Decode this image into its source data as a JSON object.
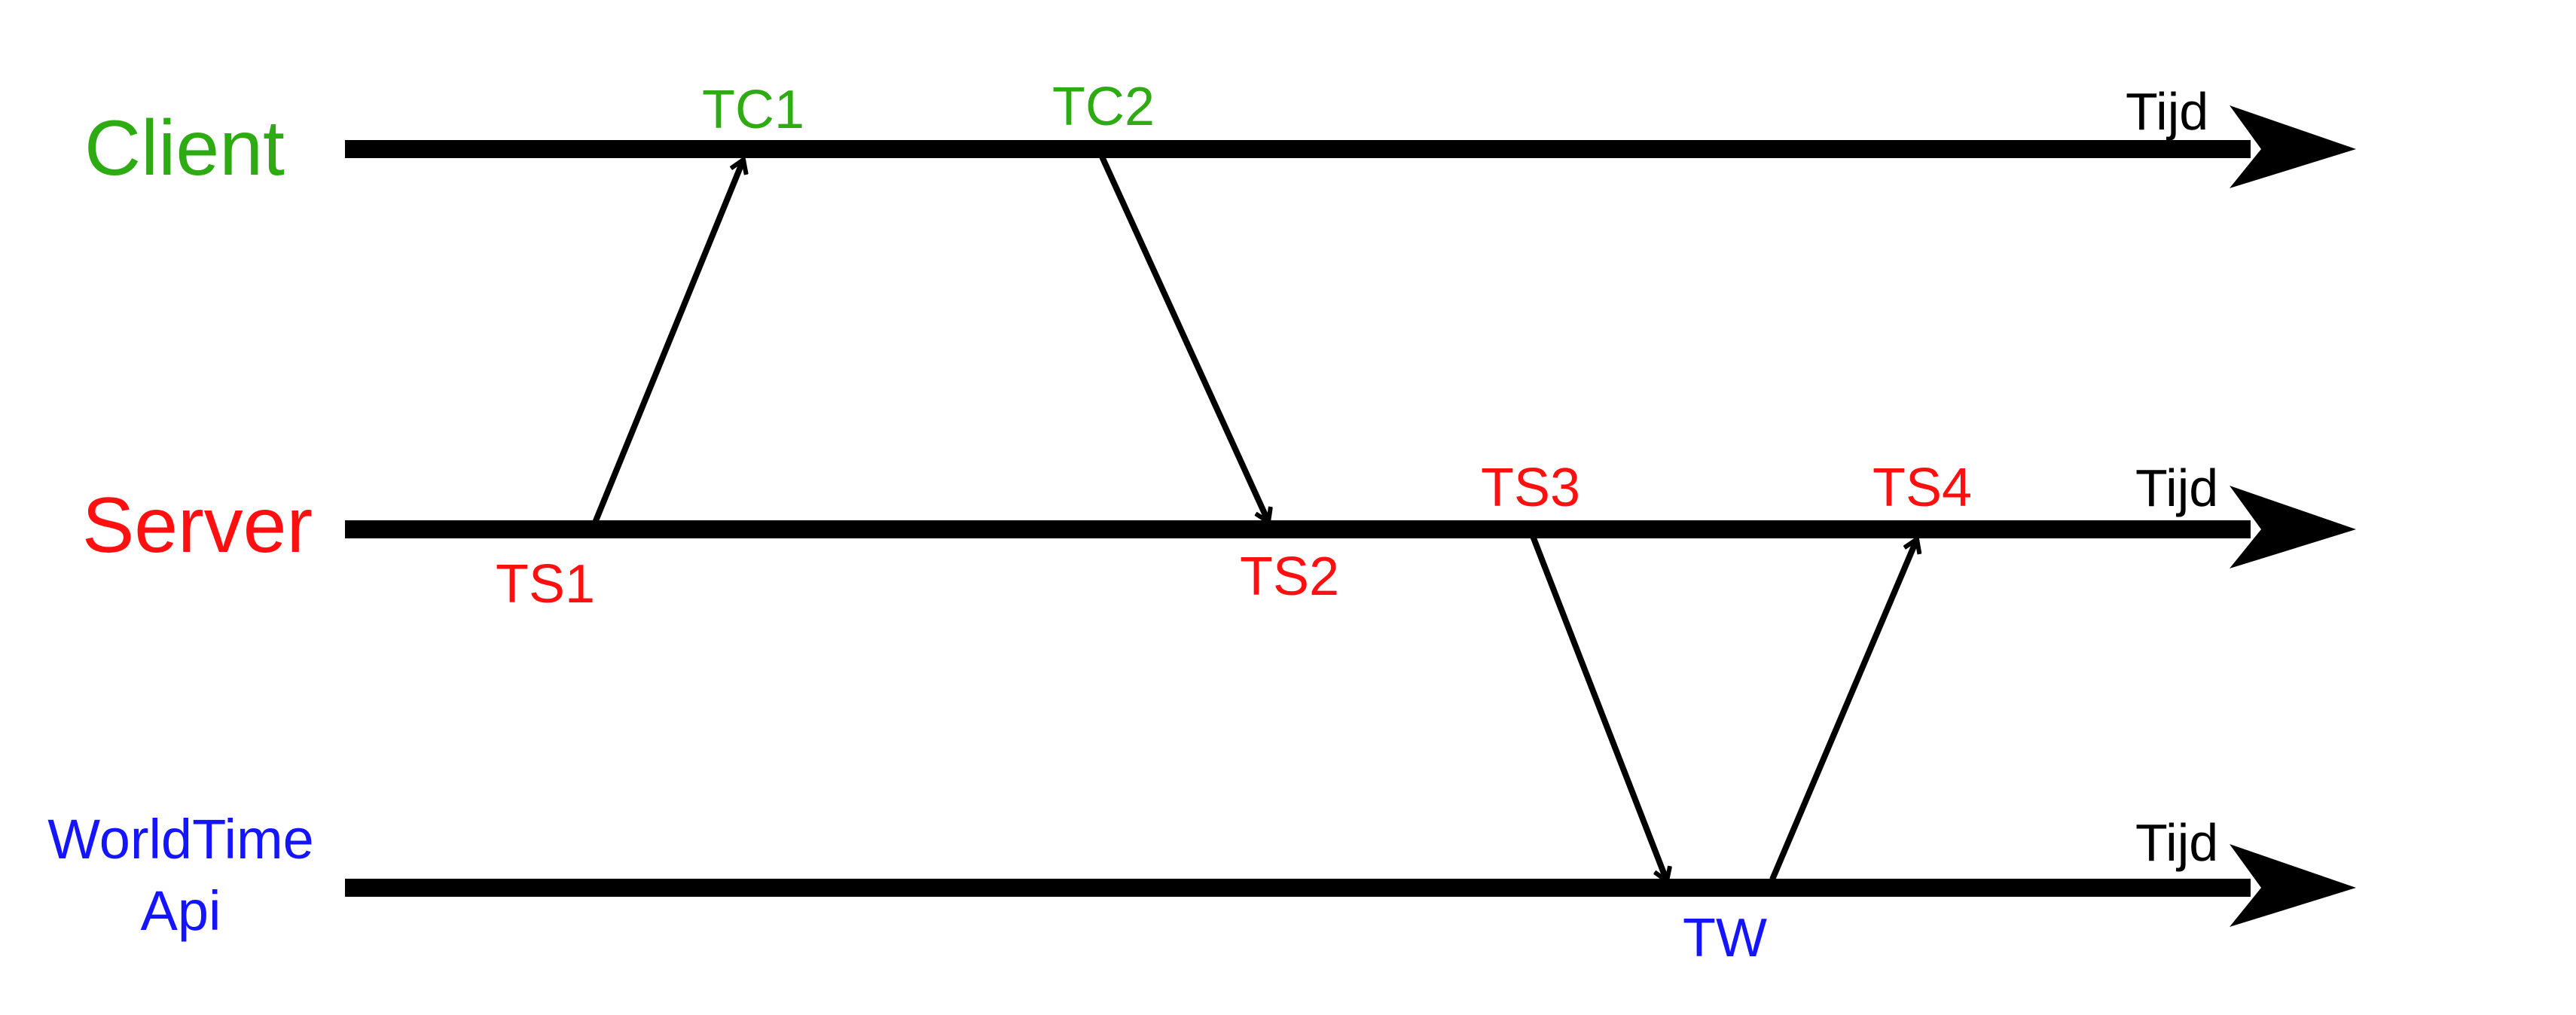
{
  "colors": {
    "client": "#2eaa12",
    "server": "#ff0f0f",
    "api": "#1414ff",
    "axis": "#000000"
  },
  "lanes": {
    "client": {
      "label_lines": [
        "Client"
      ],
      "time_label": "Tijd"
    },
    "server": {
      "label_lines": [
        "Server"
      ],
      "time_label": "Tijd"
    },
    "api": {
      "label_lines": [
        "WorldTime",
        "Api"
      ],
      "time_label": "Tijd"
    }
  },
  "events": {
    "ts1": "TS1",
    "tc1": "TC1",
    "tc2": "TC2",
    "ts2": "TS2",
    "ts3": "TS3",
    "tw": "TW",
    "ts4": "TS4"
  },
  "messages": [
    {
      "from": "ts1",
      "to": "tc1"
    },
    {
      "from": "tc2",
      "to": "ts2"
    },
    {
      "from": "ts3",
      "to": "tw"
    },
    {
      "from": "tw",
      "to": "ts4"
    }
  ]
}
